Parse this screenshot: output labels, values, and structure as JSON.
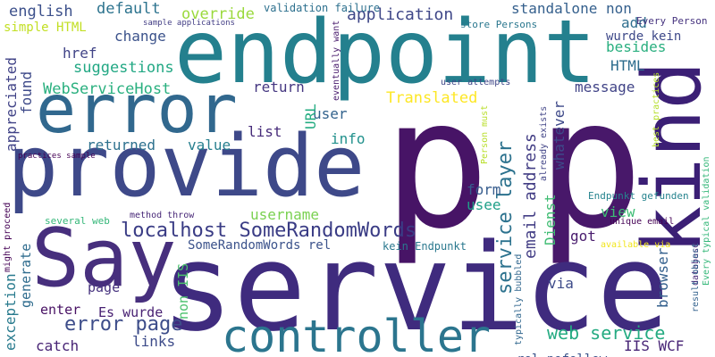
{
  "words": [
    {
      "text": "p",
      "color": "#471466"
    },
    {
      "text": "p",
      "color": "#48186a"
    },
    {
      "text": "service",
      "color": "#3f2b7e"
    },
    {
      "text": "endpoint",
      "color": "#24808e"
    },
    {
      "text": "provide",
      "color": "#3e4989"
    },
    {
      "text": "error",
      "color": "#31688e"
    },
    {
      "text": "Say",
      "color": "#472f7d"
    },
    {
      "text": "kind",
      "color": "#3b1f75"
    },
    {
      "text": "controller",
      "color": "#2b758e"
    },
    {
      "text": "localhost SomeRandomWords",
      "color": "#3a3c85"
    },
    {
      "text": "error page",
      "color": "#3d4d8a"
    },
    {
      "text": "email address",
      "color": "#433e85"
    },
    {
      "text": "service layer",
      "color": "#2c728e"
    },
    {
      "text": "web service",
      "color": "#25ab82"
    },
    {
      "text": "application",
      "color": "#3f4788"
    },
    {
      "text": "suggestions",
      "color": "#22a884"
    },
    {
      "text": "WebServiceHost",
      "color": "#2ab07f"
    },
    {
      "text": "simple HTML",
      "color": "#c2df23"
    },
    {
      "text": "english",
      "color": "#3c508b"
    },
    {
      "text": "default",
      "color": "#2c738e"
    },
    {
      "text": "override",
      "color": "#9ad93c"
    },
    {
      "text": "standalone non",
      "color": "#35608d"
    },
    {
      "text": "change",
      "color": "#3b528b"
    },
    {
      "text": "href",
      "color": "#414487"
    },
    {
      "text": "found",
      "color": "#3e4a89"
    },
    {
      "text": "appreciated",
      "color": "#414387"
    },
    {
      "text": "return",
      "color": "#453781"
    },
    {
      "text": "returned",
      "color": "#2d718e"
    },
    {
      "text": "value",
      "color": "#277f8e"
    },
    {
      "text": "list",
      "color": "#472c7a"
    },
    {
      "text": "info",
      "color": "#21918c"
    },
    {
      "text": "user",
      "color": "#33638d"
    },
    {
      "text": "URL",
      "color": "#25ac82"
    },
    {
      "text": "Translated",
      "color": "#fde725"
    },
    {
      "text": "message",
      "color": "#414487"
    },
    {
      "text": "whatever",
      "color": "#3e4989"
    },
    {
      "text": "besides",
      "color": "#29af7f"
    },
    {
      "text": "HTML",
      "color": "#2e6d8e"
    },
    {
      "text": "add",
      "color": "#2e6e8e"
    },
    {
      "text": "wurde kein",
      "color": "#3e4989"
    },
    {
      "text": "form",
      "color": "#365c8d"
    },
    {
      "text": "username",
      "color": "#7ad151"
    },
    {
      "text": "usee",
      "color": "#1fa088"
    },
    {
      "text": "got",
      "color": "#481b6d"
    },
    {
      "text": "view",
      "color": "#3dbc74"
    },
    {
      "text": "Dienst",
      "color": "#3fbc73"
    },
    {
      "text": "browser",
      "color": "#34608d"
    },
    {
      "text": "via",
      "color": "#3e4c8a"
    },
    {
      "text": "SomeRandomWords rel",
      "color": "#3b528b"
    },
    {
      "text": "kein Endpunkt",
      "color": "#2a788e"
    },
    {
      "text": "page",
      "color": "#46327e"
    },
    {
      "text": "enter",
      "color": "#471063"
    },
    {
      "text": "Es wurde",
      "color": "#482173"
    },
    {
      "text": "catch",
      "color": "#482475"
    },
    {
      "text": "links",
      "color": "#3e4c8a"
    },
    {
      "text": "exception",
      "color": "#297b8e"
    },
    {
      "text": "generate",
      "color": "#2f6c8e"
    },
    {
      "text": "non IIS",
      "color": "#4ac16d"
    },
    {
      "text": "IIS WCF",
      "color": "#482576"
    },
    {
      "text": "rel nofollow",
      "color": "#3a538b"
    },
    {
      "text": "Every Person",
      "color": "#46337f"
    },
    {
      "text": "store Persons",
      "color": "#2a778e"
    },
    {
      "text": "validation failure",
      "color": "#2d708e"
    },
    {
      "text": "sample applications",
      "color": "#433e85"
    },
    {
      "text": "eventually want",
      "color": "#481a6c"
    },
    {
      "text": "user attempts",
      "color": "#3f4788"
    },
    {
      "text": "Person must",
      "color": "#b8de29"
    },
    {
      "text": "already exists",
      "color": "#414487"
    },
    {
      "text": "typically bubbled",
      "color": "#31678e"
    },
    {
      "text": "best practices",
      "color": "#b5de2b"
    },
    {
      "text": "Every typical validation",
      "color": "#35b779"
    },
    {
      "text": "database",
      "color": "#482878"
    },
    {
      "text": "result object",
      "color": "#33628d"
    },
    {
      "text": "Endpunkt gefunden",
      "color": "#25838e"
    },
    {
      "text": "unique email",
      "color": "#440154"
    },
    {
      "text": "available via",
      "color": "#f1e51d"
    },
    {
      "text": "several web",
      "color": "#35b779"
    },
    {
      "text": "method throw",
      "color": "#482878"
    },
    {
      "text": "practices sample",
      "color": "#440154"
    },
    {
      "text": "might proceed",
      "color": "#440154"
    }
  ]
}
